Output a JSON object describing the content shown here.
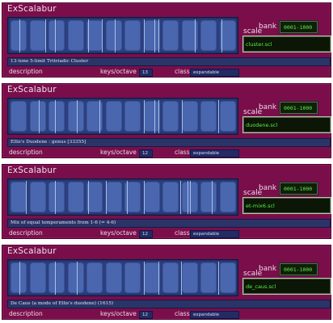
{
  "colors": {
    "panel": "#7a0e4b",
    "keyboard": "#2b3f80",
    "key": "#4a66ae",
    "lcd_text": "#5ff04a"
  },
  "labels": {
    "title": "ExScalabur",
    "scale": "scale",
    "bank": "bank -",
    "description": "description",
    "keys_octave": "keys/octave",
    "class": "class"
  },
  "panels": [
    {
      "bank": "0001-1000",
      "file": "cluster.scl",
      "description": "13-tone 5-limit Tritriadic Cluster",
      "keys": "13",
      "class": "expandable"
    },
    {
      "bank": "0001-1000",
      "file": "duodene.scl",
      "description": "Ellis's Duodene : genus [33355]",
      "keys": "12",
      "class": "expandable"
    },
    {
      "bank": "0001-1000",
      "file": "et-mix6.scl",
      "description": "Mix of equal temperaments from 1-6 (= 4-6)",
      "keys": "12",
      "class": "expandable"
    },
    {
      "bank": "0001-1000",
      "file": "de_caus.scl",
      "description": "De Caus (a mode of Ellis's duodene) (1615)",
      "keys": "12",
      "class": "expandable"
    }
  ]
}
